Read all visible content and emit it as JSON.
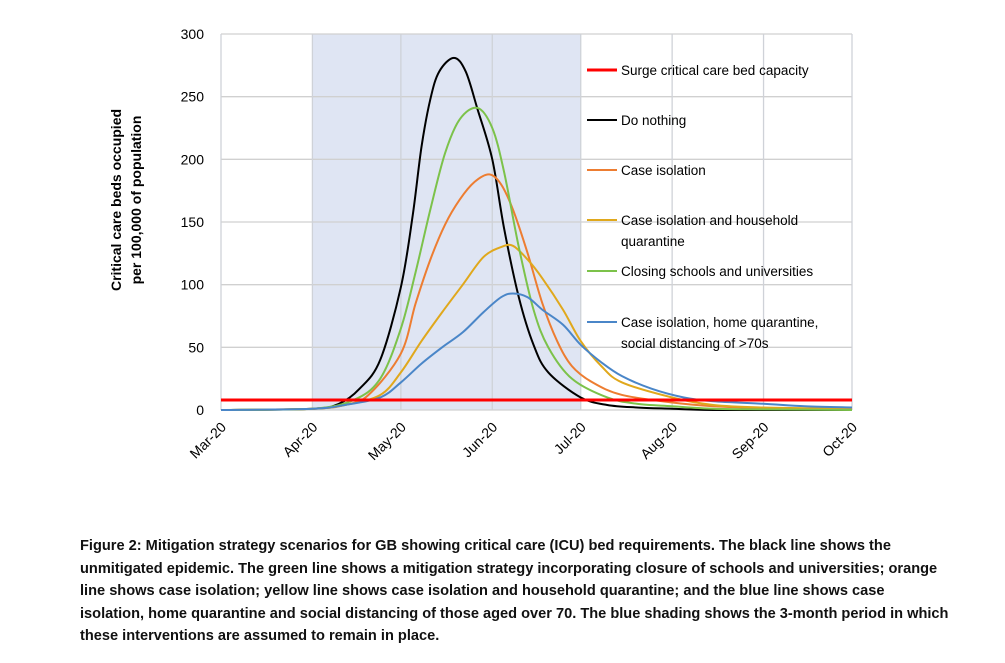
{
  "chart_data": {
    "type": "line",
    "title": "",
    "xlabel": "",
    "ylabel": [
      "Critical care beds occupied",
      "per 100,000 of population"
    ],
    "xlim": [
      "2020-03-01",
      "2020-10-01"
    ],
    "ylim": [
      0,
      300
    ],
    "yticks": [
      0,
      50,
      100,
      150,
      200,
      250,
      300
    ],
    "xticks": [
      {
        "date": "2020-03-01",
        "label": "Mar-20"
      },
      {
        "date": "2020-04-01",
        "label": "Apr-20"
      },
      {
        "date": "2020-05-01",
        "label": "May-20"
      },
      {
        "date": "2020-06-01",
        "label": "Jun-20"
      },
      {
        "date": "2020-07-01",
        "label": "Jul-20"
      },
      {
        "date": "2020-08-01",
        "label": "Aug-20"
      },
      {
        "date": "2020-09-01",
        "label": "Sep-20"
      },
      {
        "date": "2020-10-01",
        "label": "Oct-20"
      }
    ],
    "grid": true,
    "legend_position": "right-inside",
    "shaded_period": {
      "start": "2020-04-01",
      "end": "2020-07-01",
      "color": "#dfe5f3"
    },
    "series": [
      {
        "name": "Surge critical care bed capacity",
        "color": "#ff0000",
        "width": 3,
        "points": [
          [
            "2020-03-01",
            8
          ],
          [
            "2020-10-01",
            8
          ]
        ]
      },
      {
        "name": "Do nothing",
        "color": "#000000",
        "width": 2,
        "points": [
          [
            "2020-03-01",
            0
          ],
          [
            "2020-04-01",
            1
          ],
          [
            "2020-04-10",
            5
          ],
          [
            "2020-04-17",
            17
          ],
          [
            "2020-04-24",
            40
          ],
          [
            "2020-05-01",
            98
          ],
          [
            "2020-05-05",
            155
          ],
          [
            "2020-05-08",
            210
          ],
          [
            "2020-05-11",
            248
          ],
          [
            "2020-05-14",
            270
          ],
          [
            "2020-05-19",
            281
          ],
          [
            "2020-05-23",
            270
          ],
          [
            "2020-05-27",
            240
          ],
          [
            "2020-06-01",
            200
          ],
          [
            "2020-06-05",
            145
          ],
          [
            "2020-06-10",
            90
          ],
          [
            "2020-06-15",
            52
          ],
          [
            "2020-06-20",
            30
          ],
          [
            "2020-07-01",
            10
          ],
          [
            "2020-07-10",
            4
          ],
          [
            "2020-07-20",
            2
          ],
          [
            "2020-08-01",
            1
          ],
          [
            "2020-08-15",
            0
          ],
          [
            "2020-10-01",
            0
          ]
        ]
      },
      {
        "name": "Case isolation",
        "color": "#ed7d31",
        "width": 2,
        "points": [
          [
            "2020-03-01",
            0
          ],
          [
            "2020-04-01",
            1
          ],
          [
            "2020-04-12",
            4
          ],
          [
            "2020-04-20",
            12
          ],
          [
            "2020-05-01",
            45
          ],
          [
            "2020-05-06",
            85
          ],
          [
            "2020-05-11",
            120
          ],
          [
            "2020-05-16",
            148
          ],
          [
            "2020-05-21",
            168
          ],
          [
            "2020-05-26",
            182
          ],
          [
            "2020-05-31",
            188
          ],
          [
            "2020-06-04",
            180
          ],
          [
            "2020-06-08",
            160
          ],
          [
            "2020-06-13",
            125
          ],
          [
            "2020-06-18",
            85
          ],
          [
            "2020-06-23",
            55
          ],
          [
            "2020-06-28",
            35
          ],
          [
            "2020-07-05",
            22
          ],
          [
            "2020-07-15",
            12
          ],
          [
            "2020-08-01",
            6
          ],
          [
            "2020-08-15",
            3
          ],
          [
            "2020-09-01",
            1.5
          ],
          [
            "2020-10-01",
            0.5
          ]
        ]
      },
      {
        "name": "Case isolation and household quarantine",
        "color": "#e0a81c",
        "width": 2,
        "points": [
          [
            "2020-03-01",
            0
          ],
          [
            "2020-04-01",
            1
          ],
          [
            "2020-04-12",
            4
          ],
          [
            "2020-04-24",
            12
          ],
          [
            "2020-05-01",
            30
          ],
          [
            "2020-05-08",
            55
          ],
          [
            "2020-05-15",
            78
          ],
          [
            "2020-05-22",
            100
          ],
          [
            "2020-05-29",
            122
          ],
          [
            "2020-06-04",
            130
          ],
          [
            "2020-06-08",
            131
          ],
          [
            "2020-06-13",
            120
          ],
          [
            "2020-06-18",
            105
          ],
          [
            "2020-06-25",
            80
          ],
          [
            "2020-07-01",
            55
          ],
          [
            "2020-07-08",
            35
          ],
          [
            "2020-07-15",
            22
          ],
          [
            "2020-08-01",
            10
          ],
          [
            "2020-08-15",
            4
          ],
          [
            "2020-09-01",
            2
          ],
          [
            "2020-10-01",
            1
          ]
        ]
      },
      {
        "name": "Closing schools and universities",
        "color": "#7cc24a",
        "width": 2,
        "points": [
          [
            "2020-03-01",
            0
          ],
          [
            "2020-04-01",
            1
          ],
          [
            "2020-04-15",
            8
          ],
          [
            "2020-04-24",
            25
          ],
          [
            "2020-05-01",
            65
          ],
          [
            "2020-05-06",
            110
          ],
          [
            "2020-05-11",
            160
          ],
          [
            "2020-05-16",
            205
          ],
          [
            "2020-05-21",
            232
          ],
          [
            "2020-05-27",
            241
          ],
          [
            "2020-06-01",
            225
          ],
          [
            "2020-06-05",
            190
          ],
          [
            "2020-06-10",
            130
          ],
          [
            "2020-06-15",
            80
          ],
          [
            "2020-06-20",
            50
          ],
          [
            "2020-06-28",
            25
          ],
          [
            "2020-07-10",
            10
          ],
          [
            "2020-07-20",
            5
          ],
          [
            "2020-08-01",
            3
          ],
          [
            "2020-08-15",
            1
          ],
          [
            "2020-09-01",
            0.5
          ],
          [
            "2020-10-01",
            0
          ]
        ]
      },
      {
        "name": "Case isolation, home quarantine, social distancing of >70s",
        "color": "#4a86c8",
        "width": 2,
        "points": [
          [
            "2020-03-01",
            0
          ],
          [
            "2020-04-01",
            1
          ],
          [
            "2020-04-12",
            4
          ],
          [
            "2020-04-24",
            10
          ],
          [
            "2020-05-01",
            22
          ],
          [
            "2020-05-08",
            37
          ],
          [
            "2020-05-15",
            50
          ],
          [
            "2020-05-22",
            62
          ],
          [
            "2020-05-29",
            78
          ],
          [
            "2020-06-04",
            90
          ],
          [
            "2020-06-08",
            93
          ],
          [
            "2020-06-13",
            90
          ],
          [
            "2020-06-18",
            80
          ],
          [
            "2020-06-25",
            68
          ],
          [
            "2020-07-01",
            52
          ],
          [
            "2020-07-08",
            38
          ],
          [
            "2020-07-15",
            27
          ],
          [
            "2020-07-25",
            17
          ],
          [
            "2020-08-05",
            10
          ],
          [
            "2020-08-15",
            7
          ],
          [
            "2020-09-01",
            5
          ],
          [
            "2020-09-15",
            3
          ],
          [
            "2020-10-01",
            2
          ]
        ]
      }
    ],
    "legend": [
      {
        "lines": [
          "Surge critical care bed capacity"
        ]
      },
      {
        "lines": [
          "Do nothing"
        ]
      },
      {
        "lines": [
          "Case isolation"
        ]
      },
      {
        "lines": [
          "Case isolation and household",
          "quarantine"
        ]
      },
      {
        "lines": [
          "Closing schools and universities"
        ]
      },
      {
        "lines": [
          "Case isolation, home quarantine,",
          "social distancing of >70s"
        ]
      }
    ]
  },
  "caption": "Figure 2: Mitigation strategy scenarios for GB showing critical care (ICU) bed requirements. The black line shows the unmitigated epidemic. The green line shows a mitigation strategy incorporating closure of schools and universities; orange line shows case isolation; yellow line shows case isolation and household quarantine; and the blue line shows case isolation, home quarantine and social distancing of those aged over 70. The blue shading shows the 3-month period in which these interventions are assumed to remain in place."
}
